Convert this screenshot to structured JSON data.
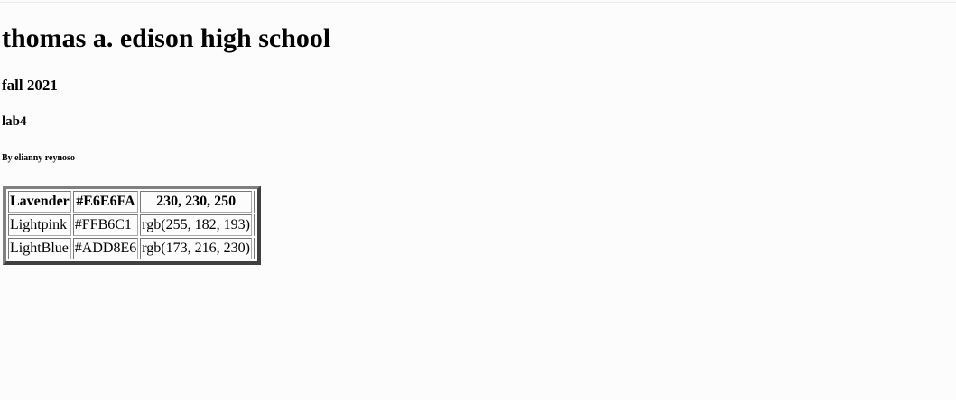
{
  "title": "thomas a. edison high school",
  "term": "fall 2021",
  "lab": "lab4",
  "author": "By elianny reynoso",
  "table": {
    "rows": [
      {
        "name": "Lavender",
        "hex": "#E6E6FA",
        "rgb": "230, 230, 250",
        "swatch": "#E6E6FA"
      },
      {
        "name": "Lightpink",
        "hex": "#FFB6C1",
        "rgb": "rgb(255, 182, 193)",
        "swatch": "#FFB6C1"
      },
      {
        "name": "LightBlue",
        "hex": "#ADD8E6",
        "rgb": "rgb(173, 216, 230)",
        "swatch": "#ADD8E6"
      }
    ]
  }
}
